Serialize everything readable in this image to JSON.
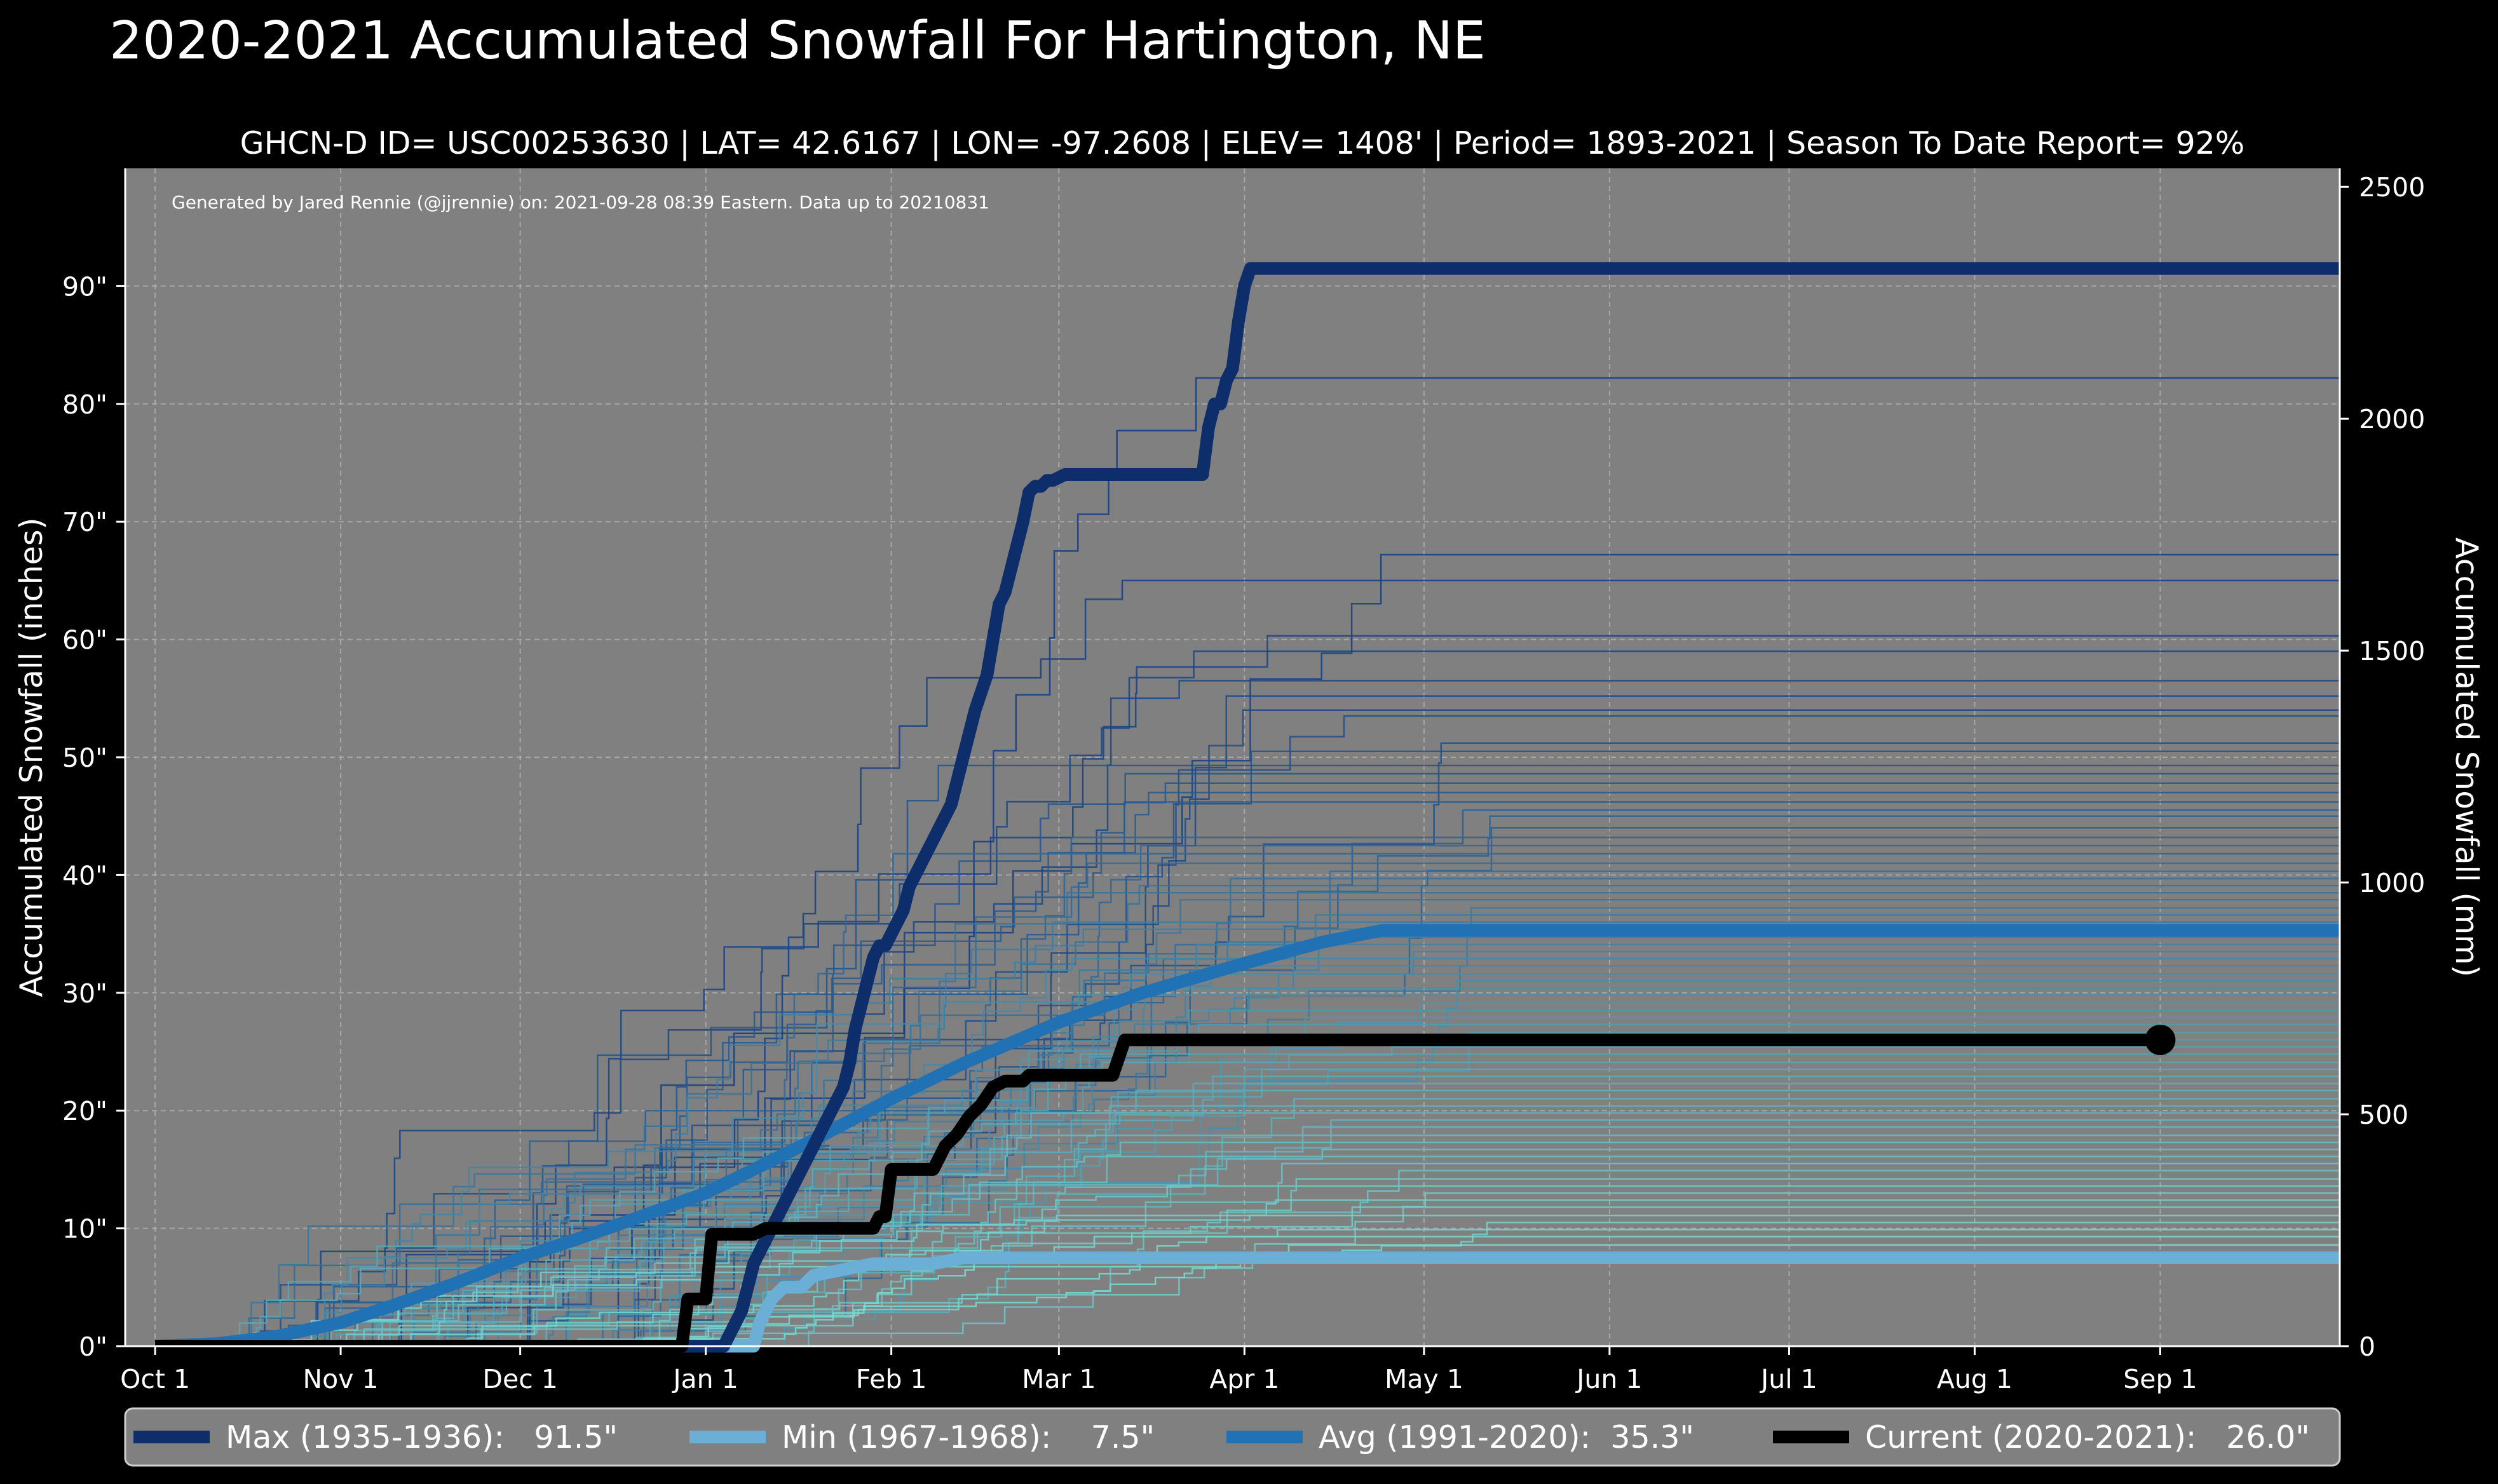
{
  "chart_data": {
    "type": "line",
    "title": "2020-2021 Accumulated Snowfall For Hartington, NE",
    "subtitle": "GHCN-D ID= USC00253630 | LAT= 42.6167 | LON= -97.2608 | ELEV= 1408' | Period= 1893-2021 | Season To Date Report= 92%",
    "credit": "Generated by Jared Rennie (@jjrennie) on: 2021-09-28 08:39 Eastern. Data up to 20210831",
    "ylabel_left": "Accumulated Snowfall (inches)",
    "ylabel_right": "Accumulated Snowfall (mm)",
    "x_unit": "day of season (0 = Oct 1)",
    "xlim": [
      -5,
      365
    ],
    "ylim": [
      0,
      100
    ],
    "ylim_mm": [
      0,
      2540
    ],
    "x_ticks": [
      {
        "label": "Oct 1",
        "day": 0
      },
      {
        "label": "Nov 1",
        "day": 31
      },
      {
        "label": "Dec 1",
        "day": 61
      },
      {
        "label": "Jan 1",
        "day": 92
      },
      {
        "label": "Feb 1",
        "day": 123
      },
      {
        "label": "Mar 1",
        "day": 151
      },
      {
        "label": "Apr 1",
        "day": 182
      },
      {
        "label": "May 1",
        "day": 212
      },
      {
        "label": "Jun 1",
        "day": 243
      },
      {
        "label": "Jul 1",
        "day": 273
      },
      {
        "label": "Aug 1",
        "day": 304
      },
      {
        "label": "Sep 1",
        "day": 335
      }
    ],
    "y_ticks_left": [
      {
        "label": "0\"",
        "value": 0
      },
      {
        "label": "10\"",
        "value": 10
      },
      {
        "label": "20\"",
        "value": 20
      },
      {
        "label": "30\"",
        "value": 30
      },
      {
        "label": "40\"",
        "value": 40
      },
      {
        "label": "50\"",
        "value": 50
      },
      {
        "label": "60\"",
        "value": 60
      },
      {
        "label": "70\"",
        "value": 70
      },
      {
        "label": "80\"",
        "value": 80
      },
      {
        "label": "90\"",
        "value": 90
      }
    ],
    "y_ticks_right": [
      {
        "label": "0",
        "value": 0
      },
      {
        "label": "500",
        "value": 500
      },
      {
        "label": "1000",
        "value": 1000
      },
      {
        "label": "1500",
        "value": 1500
      },
      {
        "label": "2000",
        "value": 2000
      },
      {
        "label": "2500",
        "value": 2500
      }
    ],
    "historical_finals": [
      82.2,
      67.2,
      65.0,
      60.3,
      59.0,
      56.5,
      55.2,
      54.0,
      53.5,
      51.2,
      50.5,
      49.3,
      48.6,
      47.8,
      47.0,
      46.2,
      45.5,
      45.0,
      44.0,
      43.2,
      42.5,
      41.8,
      41.0,
      40.3,
      39.7,
      39.1,
      38.5,
      37.9,
      37.2,
      36.6,
      36.0,
      35.4,
      34.7,
      34.1,
      33.5,
      32.9,
      32.3,
      31.6,
      31.0,
      30.4,
      29.8,
      29.1,
      28.5,
      27.9,
      27.3,
      26.6,
      26.0,
      25.4,
      24.8,
      24.1,
      23.5,
      22.9,
      22.3,
      21.7,
      21.0,
      20.4,
      19.8,
      19.2,
      18.6,
      17.9,
      17.3,
      16.7,
      16.1,
      15.5,
      14.9,
      14.2,
      13.6,
      13.0,
      12.4,
      11.8,
      11.1,
      10.5,
      9.9,
      9.3,
      8.6
    ],
    "series": [
      {
        "name": "Max (1935-1936)",
        "final": 91.5,
        "final_label": "91.5\"",
        "color": "#0d2d6b",
        "points": [
          [
            0,
            0
          ],
          [
            95,
            0
          ],
          [
            96,
            1
          ],
          [
            97,
            2
          ],
          [
            98,
            3
          ],
          [
            99,
            5
          ],
          [
            100,
            7
          ],
          [
            102,
            9
          ],
          [
            103,
            10
          ],
          [
            105,
            12
          ],
          [
            106,
            13
          ],
          [
            108,
            15
          ],
          [
            109,
            16
          ],
          [
            110,
            17
          ],
          [
            112,
            19
          ],
          [
            113,
            20
          ],
          [
            115,
            22
          ],
          [
            116,
            24
          ],
          [
            117,
            27
          ],
          [
            118,
            29
          ],
          [
            119,
            31
          ],
          [
            120,
            33
          ],
          [
            121,
            34
          ],
          [
            122,
            34
          ],
          [
            123,
            35
          ],
          [
            124,
            36
          ],
          [
            125,
            37
          ],
          [
            126,
            39
          ],
          [
            127,
            40
          ],
          [
            129,
            42
          ],
          [
            130,
            43
          ],
          [
            131,
            44
          ],
          [
            133,
            46
          ],
          [
            134,
            48
          ],
          [
            135,
            50
          ],
          [
            136,
            52
          ],
          [
            137,
            54
          ],
          [
            139,
            57
          ],
          [
            140,
            60
          ],
          [
            141,
            63
          ],
          [
            142,
            64
          ],
          [
            143,
            66
          ],
          [
            144,
            68
          ],
          [
            145,
            70
          ],
          [
            146,
            72.5
          ],
          [
            147,
            73
          ],
          [
            148,
            73
          ],
          [
            149,
            73.5
          ],
          [
            150,
            73.5
          ],
          [
            152,
            74
          ],
          [
            158,
            74
          ],
          [
            164,
            74
          ],
          [
            170,
            74
          ],
          [
            175,
            74
          ],
          [
            176,
            78
          ],
          [
            177,
            80
          ],
          [
            178,
            80
          ],
          [
            179,
            82
          ],
          [
            180,
            83
          ],
          [
            181,
            87
          ],
          [
            182,
            90
          ],
          [
            183,
            91.5
          ],
          [
            365,
            91.5
          ]
        ]
      },
      {
        "name": "Min (1967-1968)",
        "final": 7.5,
        "final_label": "7.5\"",
        "color": "#6baed6",
        "points": [
          [
            0,
            0
          ],
          [
            95,
            0
          ],
          [
            100,
            0
          ],
          [
            101,
            2
          ],
          [
            102,
            3
          ],
          [
            103,
            4
          ],
          [
            105,
            5
          ],
          [
            108,
            5
          ],
          [
            110,
            6
          ],
          [
            115,
            6.5
          ],
          [
            120,
            7
          ],
          [
            125,
            7
          ],
          [
            130,
            7
          ],
          [
            135,
            7.5
          ],
          [
            140,
            7.5
          ],
          [
            145,
            7.5
          ],
          [
            150,
            7.5
          ],
          [
            155,
            7.5
          ],
          [
            160,
            7.5
          ],
          [
            365,
            7.5
          ]
        ]
      },
      {
        "name": "Avg (1991-2020)",
        "final": 35.3,
        "final_label": "35.3\"",
        "color": "#2171b5",
        "points": [
          [
            0,
            0
          ],
          [
            10,
            0.2
          ],
          [
            20,
            0.8
          ],
          [
            31,
            2.0
          ],
          [
            40,
            3.5
          ],
          [
            50,
            5.3
          ],
          [
            61,
            7.5
          ],
          [
            70,
            9.0
          ],
          [
            80,
            10.8
          ],
          [
            92,
            13.0
          ],
          [
            100,
            15.0
          ],
          [
            110,
            17.5
          ],
          [
            123,
            21.0
          ],
          [
            135,
            24.0
          ],
          [
            151,
            27.5
          ],
          [
            165,
            30.0
          ],
          [
            182,
            32.5
          ],
          [
            195,
            34.3
          ],
          [
            205,
            35.3
          ],
          [
            365,
            35.3
          ]
        ]
      },
      {
        "name": "Current (2020-2021)",
        "final": 26.0,
        "final_label": "26.0\"",
        "color": "#000000",
        "points": [
          [
            0,
            0
          ],
          [
            88,
            0
          ],
          [
            89,
            4
          ],
          [
            92,
            4
          ],
          [
            93,
            9.5
          ],
          [
            100,
            9.5
          ],
          [
            102,
            10
          ],
          [
            120,
            10
          ],
          [
            121,
            11
          ],
          [
            122,
            11
          ],
          [
            123,
            15
          ],
          [
            130,
            15
          ],
          [
            132,
            17
          ],
          [
            134,
            18
          ],
          [
            136,
            19.5
          ],
          [
            138,
            20.5
          ],
          [
            140,
            22
          ],
          [
            142,
            22.5
          ],
          [
            145,
            22.5
          ],
          [
            146,
            23
          ],
          [
            160,
            23
          ],
          [
            162,
            26
          ],
          [
            335,
            26
          ]
        ]
      }
    ]
  },
  "legend": {
    "items": [
      {
        "name": "Max (1935-1936):",
        "value": "   91.5\"",
        "color": "#0d2d6b"
      },
      {
        "name": "Min (1967-1968):",
        "value": "    7.5\"",
        "color": "#6baed6"
      },
      {
        "name": "Avg (1991-2020):",
        "value": "  35.3\"",
        "color": "#2171b5"
      },
      {
        "name": "Current (2020-2021):",
        "value": "   26.0\"",
        "color": "#000000"
      }
    ]
  },
  "colors": {
    "background": "#000000",
    "plot_background": "#808080",
    "legend_background": "#808080",
    "grid": "#b8b8b8",
    "text": "#ffffff"
  }
}
